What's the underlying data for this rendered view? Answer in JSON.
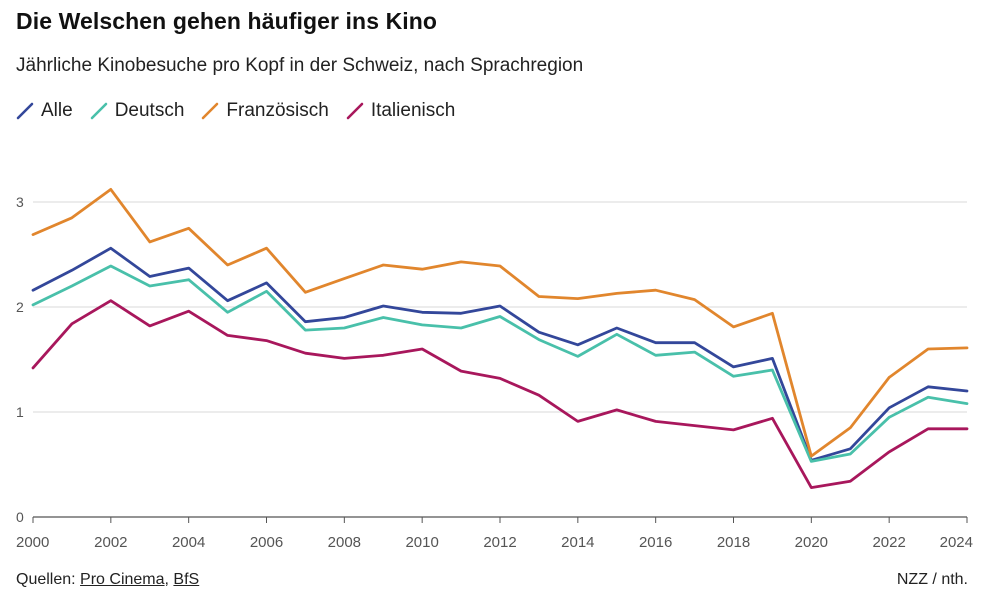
{
  "title": "Die Welschen gehen häufiger ins Kino",
  "subtitle": "Jährliche Kinobesuche pro Kopf in der Schweiz, nach Sprachregion",
  "sources": {
    "prefix": "Quellen:",
    "sep": ", ",
    "links": [
      "Pro Cinema",
      "BfS"
    ]
  },
  "credit": "NZZ / nth.",
  "chart_data": {
    "type": "line",
    "title": "Die Welschen gehen häufiger ins Kino",
    "subtitle": "Jährliche Kinobesuche pro Kopf in der Schweiz, nach Sprachregion",
    "xlabel": "",
    "ylabel": "",
    "x": [
      2000,
      2001,
      2002,
      2003,
      2004,
      2005,
      2006,
      2007,
      2008,
      2009,
      2010,
      2011,
      2012,
      2013,
      2014,
      2015,
      2016,
      2017,
      2018,
      2019,
      2020,
      2021,
      2022,
      2023,
      2024
    ],
    "xticks": [
      2000,
      2002,
      2004,
      2006,
      2008,
      2010,
      2012,
      2014,
      2016,
      2018,
      2020,
      2022,
      2024
    ],
    "yticks": [
      0,
      1,
      2,
      3
    ],
    "xlim": [
      2000,
      2024
    ],
    "ylim": [
      0,
      3.3
    ],
    "grid": true,
    "legend_position": "top-left",
    "series": [
      {
        "name": "Alle",
        "color": "#33479a",
        "values": [
          2.16,
          2.35,
          2.56,
          2.29,
          2.37,
          2.06,
          2.23,
          1.86,
          1.9,
          2.01,
          1.95,
          1.94,
          2.01,
          1.76,
          1.64,
          1.8,
          1.66,
          1.66,
          1.43,
          1.51,
          0.54,
          0.65,
          1.04,
          1.24,
          1.2
        ]
      },
      {
        "name": "Deutsch",
        "color": "#49c0aa",
        "values": [
          2.02,
          2.2,
          2.39,
          2.2,
          2.26,
          1.95,
          2.15,
          1.78,
          1.8,
          1.9,
          1.83,
          1.8,
          1.91,
          1.69,
          1.53,
          1.74,
          1.54,
          1.57,
          1.34,
          1.4,
          0.53,
          0.6,
          0.95,
          1.14,
          1.08
        ]
      },
      {
        "name": "Französisch",
        "color": "#e1862d",
        "values": [
          2.69,
          2.85,
          3.12,
          2.62,
          2.75,
          2.4,
          2.56,
          2.14,
          2.27,
          2.4,
          2.36,
          2.43,
          2.39,
          2.1,
          2.08,
          2.13,
          2.16,
          2.07,
          1.81,
          1.94,
          0.58,
          0.85,
          1.33,
          1.6,
          1.61
        ]
      },
      {
        "name": "Italienisch",
        "color": "#a8175c",
        "values": [
          1.42,
          1.84,
          2.06,
          1.82,
          1.96,
          1.73,
          1.68,
          1.56,
          1.51,
          1.54,
          1.6,
          1.39,
          1.32,
          1.16,
          0.91,
          1.02,
          0.91,
          0.87,
          0.83,
          0.94,
          0.28,
          0.34,
          0.62,
          0.84,
          0.84
        ]
      }
    ]
  }
}
